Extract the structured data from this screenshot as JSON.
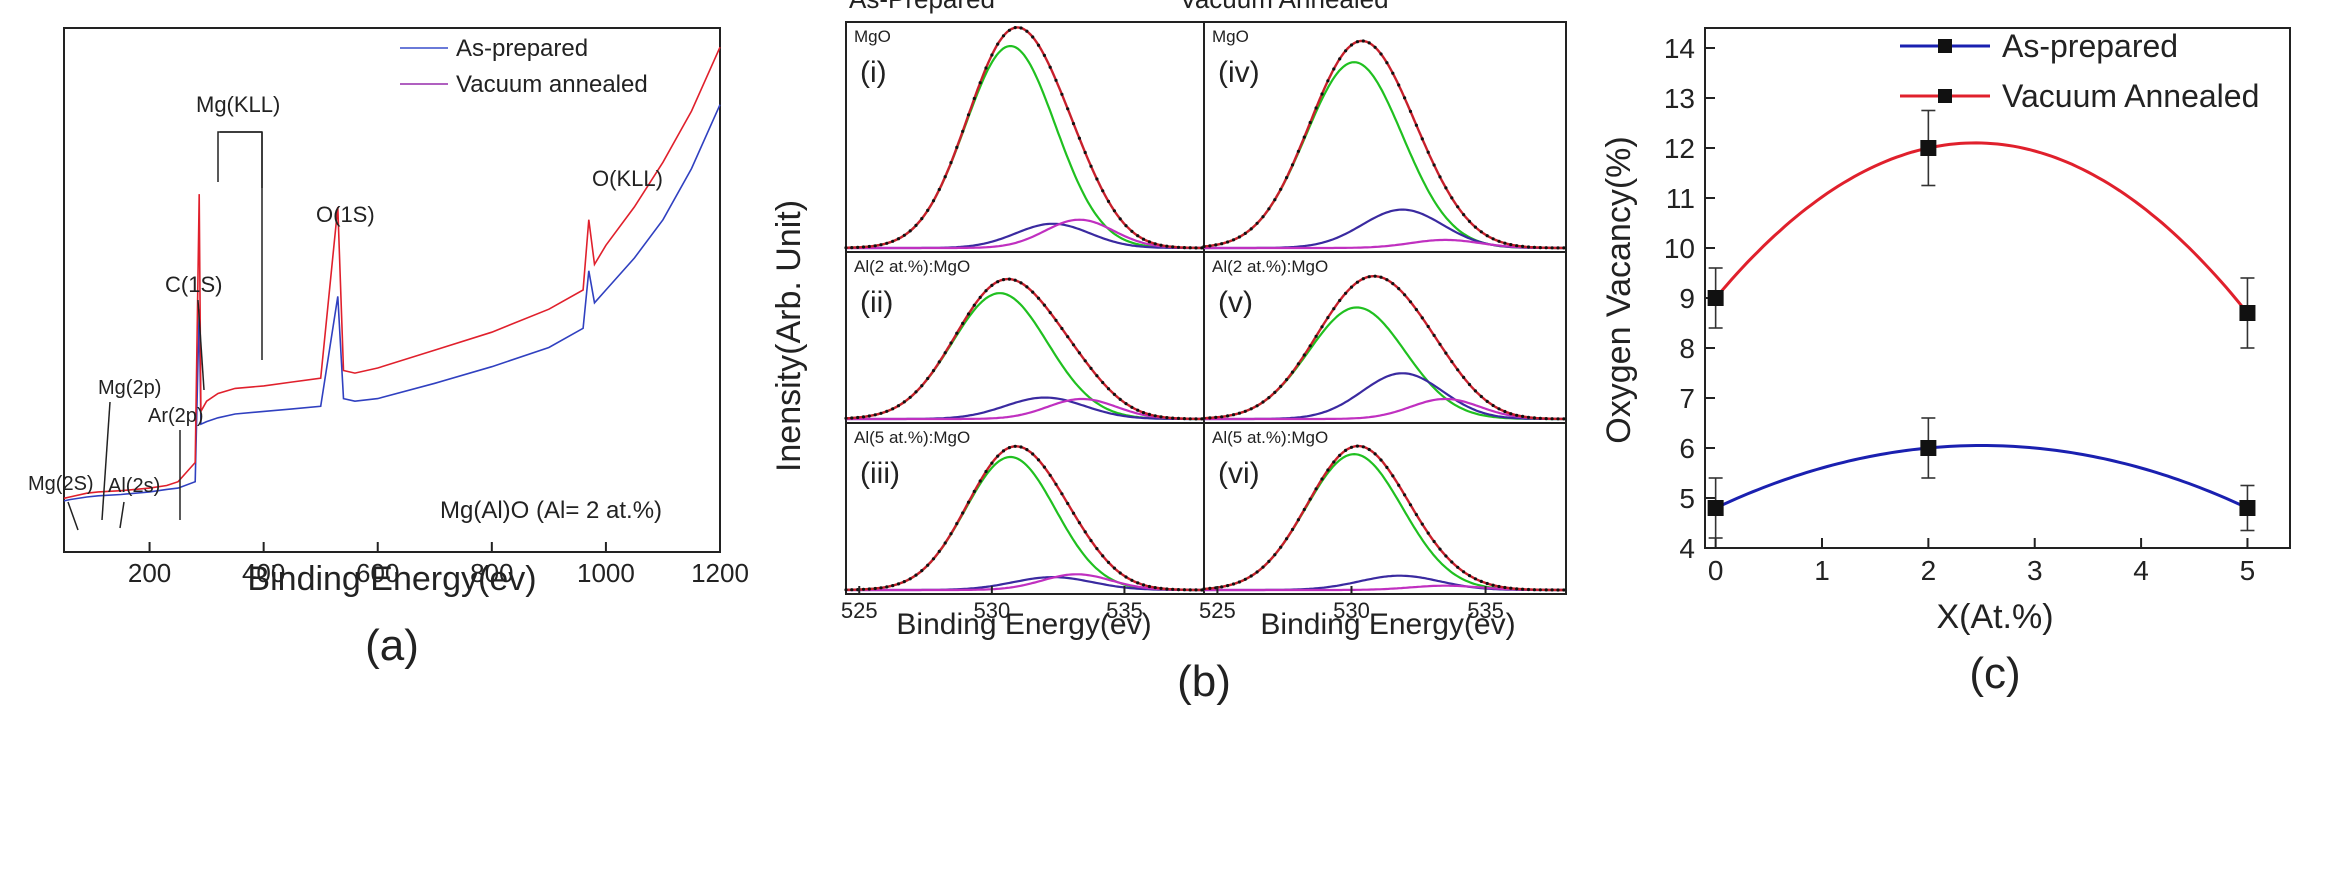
{
  "chart_data": [
    {
      "type": "line",
      "panel_label": "(a)",
      "xlabel": "Binding Energy(ev)",
      "ylabel": "",
      "xlim": [
        50,
        1200
      ],
      "xticks": [
        200,
        400,
        600,
        800,
        1000,
        1200
      ],
      "legend_position": "top-right",
      "series": [
        {
          "name": "As-prepared",
          "color": "#3040c0",
          "x": [
            50,
            60,
            90,
            110,
            150,
            200,
            230,
            250,
            280,
            287,
            290,
            300,
            320,
            350,
            400,
            450,
            500,
            530,
            540,
            560,
            600,
            700,
            800,
            900,
            960,
            970,
            980,
            1000,
            1050,
            1100,
            1150,
            1200
          ],
          "y": [
            0.4,
            0.41,
            0.43,
            0.44,
            0.45,
            0.47,
            0.49,
            0.5,
            0.55,
            1.9,
            1.0,
            1.02,
            1.05,
            1.08,
            1.1,
            1.12,
            1.14,
            2.0,
            1.2,
            1.18,
            1.2,
            1.32,
            1.45,
            1.6,
            1.75,
            2.2,
            1.95,
            2.05,
            2.3,
            2.6,
            3.0,
            3.5
          ]
        },
        {
          "name": "Vacuum annealed",
          "color": "#e0202c",
          "x": [
            50,
            60,
            90,
            110,
            150,
            200,
            230,
            250,
            280,
            287,
            290,
            300,
            320,
            350,
            400,
            450,
            500,
            530,
            540,
            560,
            600,
            700,
            800,
            900,
            960,
            970,
            980,
            1000,
            1050,
            1100,
            1150,
            1200
          ],
          "y": [
            0.42,
            0.43,
            0.46,
            0.47,
            0.48,
            0.5,
            0.52,
            0.55,
            0.7,
            2.8,
            1.1,
            1.18,
            1.24,
            1.28,
            1.3,
            1.33,
            1.36,
            2.7,
            1.42,
            1.4,
            1.44,
            1.58,
            1.72,
            1.9,
            2.05,
            2.6,
            2.25,
            2.4,
            2.7,
            3.05,
            3.45,
            3.95
          ]
        }
      ],
      "annotations": [
        "Mg(2S)",
        "Al(2s)",
        "Mg(2p)",
        "Ar(2p)",
        "C(1S)",
        "Mg(KLL)",
        "O(1S)",
        "O(KLL)",
        "Mg(Al)O (Al= 2 at.%)"
      ]
    },
    {
      "type": "line",
      "panel_label": "(b)",
      "xlabel": "Binding Energy(ev)",
      "ylabel": "Inensity(Arb. Unit)",
      "column_titles": [
        "As-Prepared",
        "Vacuum Annealed"
      ],
      "xlim": [
        524.5,
        538
      ],
      "xticks": [
        525,
        530,
        535
      ],
      "subplots": [
        {
          "roman": "(i)",
          "sample": "MgO",
          "components": [
            {
              "center": 530.7,
              "height": 1.0,
              "width": 1.7
            },
            {
              "center": 532.3,
              "height": 0.12,
              "width": 1.4
            },
            {
              "center": 533.3,
              "height": 0.14,
              "width": 1.3
            }
          ]
        },
        {
          "roman": "(ii)",
          "sample": "Al(2 at.%):MgO",
          "components": [
            {
              "center": 530.3,
              "height": 0.88,
              "width": 1.8
            },
            {
              "center": 532.0,
              "height": 0.15,
              "width": 1.5
            },
            {
              "center": 533.4,
              "height": 0.14,
              "width": 1.3
            }
          ]
        },
        {
          "roman": "(iii)",
          "sample": "Al(5 at.%):MgO",
          "components": [
            {
              "center": 530.7,
              "height": 0.93,
              "width": 1.7
            },
            {
              "center": 532.3,
              "height": 0.09,
              "width": 1.5
            },
            {
              "center": 533.2,
              "height": 0.11,
              "width": 1.3
            }
          ]
        },
        {
          "roman": "(iv)",
          "sample": "MgO",
          "components": [
            {
              "center": 530.1,
              "height": 0.92,
              "width": 1.8
            },
            {
              "center": 531.9,
              "height": 0.19,
              "width": 1.5
            },
            {
              "center": 533.5,
              "height": 0.04,
              "width": 1.3
            }
          ]
        },
        {
          "roman": "(v)",
          "sample": "Al(2 at.%):MgO",
          "components": [
            {
              "center": 530.2,
              "height": 0.78,
              "width": 1.8
            },
            {
              "center": 531.9,
              "height": 0.32,
              "width": 1.5
            },
            {
              "center": 533.5,
              "height": 0.14,
              "width": 1.3
            }
          ]
        },
        {
          "roman": "(vi)",
          "sample": "Al(5 at.%):MgO",
          "components": [
            {
              "center": 530.1,
              "height": 0.95,
              "width": 1.8
            },
            {
              "center": 531.8,
              "height": 0.1,
              "width": 1.5
            },
            {
              "center": 533.5,
              "height": 0.03,
              "width": 1.3
            }
          ]
        }
      ],
      "colors": {
        "data_points": "#111111",
        "envelope": "#c8202c",
        "main_component": "#20c020",
        "second_component": "#3a2aa0",
        "third_component": "#c030c0"
      }
    },
    {
      "type": "line",
      "panel_label": "(c)",
      "xlabel": "X(At.%)",
      "ylabel": "Oxygen Vacancy(%)",
      "xlim": [
        -0.1,
        5.4
      ],
      "ylim": [
        4,
        14.4
      ],
      "xticks": [
        0,
        1,
        2,
        3,
        4,
        5
      ],
      "yticks": [
        4,
        5,
        6,
        7,
        8,
        9,
        10,
        11,
        12,
        13,
        14
      ],
      "legend_position": "top-right",
      "series": [
        {
          "name": "As-prepared",
          "color": "#1a20b0",
          "x": [
            0,
            2,
            5
          ],
          "y": [
            4.8,
            6.0,
            4.8
          ],
          "yerr": [
            0.6,
            0.6,
            0.45
          ]
        },
        {
          "name": "Vacuum Annealed",
          "color": "#e0202c",
          "x": [
            0,
            2,
            5
          ],
          "y": [
            9.0,
            12.0,
            8.7
          ],
          "yerr": [
            0.6,
            0.75,
            0.7
          ]
        }
      ]
    }
  ]
}
